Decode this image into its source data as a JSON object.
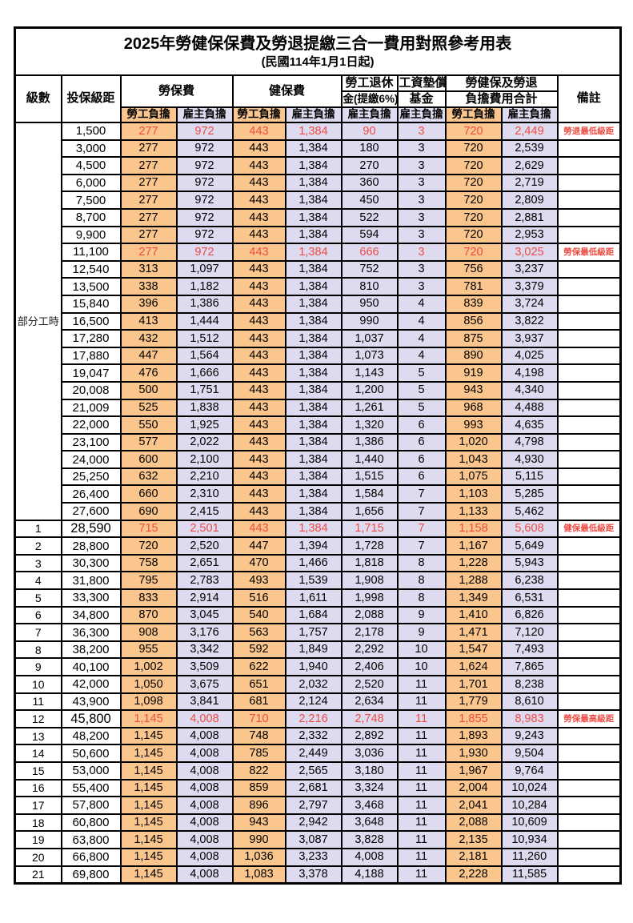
{
  "title": "2025年勞健保保費及勞退提繳三合一費用對照參考用表",
  "subtitle": "(民國114年1月1日起)",
  "header": {
    "level": "級數",
    "bracket": "投保級距",
    "labor_fee": "勞保費",
    "health_fee": "健保費",
    "pension_line1": "勞工退休",
    "pension_line2": "金(提繳6%)",
    "wage_fund_line1": "工資墊償",
    "wage_fund_line2": "基金",
    "total_line1": "勞健保及勞退",
    "total_line2": "負擔費用合計",
    "remark": "備註",
    "worker_burden": "勞工負擔",
    "employer_burden": "雇主負擔"
  },
  "part_time_label": "部分工時",
  "part_time_rowspan": 23,
  "colors": {
    "worker_column_bg": "#FAC68D",
    "employer_column_bg": "#DEDBF0",
    "highlight_text": "#EE4B44",
    "border": "#000000"
  },
  "rows": [
    [
      "",
      "1,500",
      "277",
      "972",
      "443",
      "1,384",
      "90",
      "3",
      "720",
      "2,449",
      "勞退最低級距",
      1,
      0
    ],
    [
      "",
      "3,000",
      "277",
      "972",
      "443",
      "1,384",
      "180",
      "3",
      "720",
      "2,539",
      "",
      0,
      0
    ],
    [
      "",
      "4,500",
      "277",
      "972",
      "443",
      "1,384",
      "270",
      "3",
      "720",
      "2,629",
      "",
      0,
      0
    ],
    [
      "",
      "6,000",
      "277",
      "972",
      "443",
      "1,384",
      "360",
      "3",
      "720",
      "2,719",
      "",
      0,
      0
    ],
    [
      "",
      "7,500",
      "277",
      "972",
      "443",
      "1,384",
      "450",
      "3",
      "720",
      "2,809",
      "",
      0,
      0
    ],
    [
      "",
      "8,700",
      "277",
      "972",
      "443",
      "1,384",
      "522",
      "3",
      "720",
      "2,881",
      "",
      0,
      0
    ],
    [
      "",
      "9,900",
      "277",
      "972",
      "443",
      "1,384",
      "594",
      "3",
      "720",
      "2,953",
      "",
      0,
      0
    ],
    [
      "",
      "11,100",
      "277",
      "972",
      "443",
      "1,384",
      "666",
      "3",
      "720",
      "3,025",
      "勞保最低級距",
      1,
      0
    ],
    [
      "",
      "12,540",
      "313",
      "1,097",
      "443",
      "1,384",
      "752",
      "3",
      "756",
      "3,237",
      "",
      0,
      0
    ],
    [
      "",
      "13,500",
      "338",
      "1,182",
      "443",
      "1,384",
      "810",
      "3",
      "781",
      "3,379",
      "",
      0,
      0
    ],
    [
      "",
      "15,840",
      "396",
      "1,386",
      "443",
      "1,384",
      "950",
      "4",
      "839",
      "3,724",
      "",
      0,
      0
    ],
    [
      "",
      "16,500",
      "413",
      "1,444",
      "443",
      "1,384",
      "990",
      "4",
      "856",
      "3,822",
      "",
      0,
      0
    ],
    [
      "",
      "17,280",
      "432",
      "1,512",
      "443",
      "1,384",
      "1,037",
      "4",
      "875",
      "3,937",
      "",
      0,
      0
    ],
    [
      "",
      "17,880",
      "447",
      "1,564",
      "443",
      "1,384",
      "1,073",
      "4",
      "890",
      "4,025",
      "",
      0,
      0
    ],
    [
      "",
      "19,047",
      "476",
      "1,666",
      "443",
      "1,384",
      "1,143",
      "5",
      "919",
      "4,198",
      "",
      0,
      0
    ],
    [
      "",
      "20,008",
      "500",
      "1,751",
      "443",
      "1,384",
      "1,200",
      "5",
      "943",
      "4,340",
      "",
      0,
      0
    ],
    [
      "",
      "21,009",
      "525",
      "1,838",
      "443",
      "1,384",
      "1,261",
      "5",
      "968",
      "4,488",
      "",
      0,
      0
    ],
    [
      "",
      "22,000",
      "550",
      "1,925",
      "443",
      "1,384",
      "1,320",
      "6",
      "993",
      "4,635",
      "",
      0,
      0
    ],
    [
      "",
      "23,100",
      "577",
      "2,022",
      "443",
      "1,384",
      "1,386",
      "6",
      "1,020",
      "4,798",
      "",
      0,
      0
    ],
    [
      "",
      "24,000",
      "600",
      "2,100",
      "443",
      "1,384",
      "1,440",
      "6",
      "1,043",
      "4,930",
      "",
      0,
      0
    ],
    [
      "",
      "25,250",
      "632",
      "2,210",
      "443",
      "1,384",
      "1,515",
      "6",
      "1,075",
      "5,115",
      "",
      0,
      0
    ],
    [
      "",
      "26,400",
      "660",
      "2,310",
      "443",
      "1,384",
      "1,584",
      "7",
      "1,103",
      "5,285",
      "",
      0,
      0
    ],
    [
      "",
      "27,600",
      "690",
      "2,415",
      "443",
      "1,384",
      "1,656",
      "7",
      "1,133",
      "5,462",
      "",
      0,
      0
    ],
    [
      "1",
      "28,590",
      "715",
      "2,501",
      "443",
      "1,384",
      "1,715",
      "7",
      "1,158",
      "5,608",
      "健保最低級距",
      1,
      1
    ],
    [
      "2",
      "28,800",
      "720",
      "2,520",
      "447",
      "1,394",
      "1,728",
      "7",
      "1,167",
      "5,649",
      "",
      0,
      0
    ],
    [
      "3",
      "30,300",
      "758",
      "2,651",
      "470",
      "1,466",
      "1,818",
      "8",
      "1,228",
      "5,943",
      "",
      0,
      0
    ],
    [
      "4",
      "31,800",
      "795",
      "2,783",
      "493",
      "1,539",
      "1,908",
      "8",
      "1,288",
      "6,238",
      "",
      0,
      0
    ],
    [
      "5",
      "33,300",
      "833",
      "2,914",
      "516",
      "1,611",
      "1,998",
      "8",
      "1,349",
      "6,531",
      "",
      0,
      0
    ],
    [
      "6",
      "34,800",
      "870",
      "3,045",
      "540",
      "1,684",
      "2,088",
      "9",
      "1,410",
      "6,826",
      "",
      0,
      0
    ],
    [
      "7",
      "36,300",
      "908",
      "3,176",
      "563",
      "1,757",
      "2,178",
      "9",
      "1,471",
      "7,120",
      "",
      0,
      0
    ],
    [
      "8",
      "38,200",
      "955",
      "3,342",
      "592",
      "1,849",
      "2,292",
      "10",
      "1,547",
      "7,493",
      "",
      0,
      0
    ],
    [
      "9",
      "40,100",
      "1,002",
      "3,509",
      "622",
      "1,940",
      "2,406",
      "10",
      "1,624",
      "7,865",
      "",
      0,
      0
    ],
    [
      "10",
      "42,000",
      "1,050",
      "3,675",
      "651",
      "2,032",
      "2,520",
      "11",
      "1,701",
      "8,238",
      "",
      0,
      0
    ],
    [
      "11",
      "43,900",
      "1,098",
      "3,841",
      "681",
      "2,124",
      "2,634",
      "11",
      "1,779",
      "8,610",
      "",
      0,
      0
    ],
    [
      "12",
      "45,800",
      "1,145",
      "4,008",
      "710",
      "2,216",
      "2,748",
      "11",
      "1,855",
      "8,983",
      "勞保最高級距",
      1,
      1
    ],
    [
      "13",
      "48,200",
      "1,145",
      "4,008",
      "748",
      "2,332",
      "2,892",
      "11",
      "1,893",
      "9,243",
      "",
      0,
      0
    ],
    [
      "14",
      "50,600",
      "1,145",
      "4,008",
      "785",
      "2,449",
      "3,036",
      "11",
      "1,930",
      "9,504",
      "",
      0,
      0
    ],
    [
      "15",
      "53,000",
      "1,145",
      "4,008",
      "822",
      "2,565",
      "3,180",
      "11",
      "1,967",
      "9,764",
      "",
      0,
      0
    ],
    [
      "16",
      "55,400",
      "1,145",
      "4,008",
      "859",
      "2,681",
      "3,324",
      "11",
      "2,004",
      "10,024",
      "",
      0,
      0
    ],
    [
      "17",
      "57,800",
      "1,145",
      "4,008",
      "896",
      "2,797",
      "3,468",
      "11",
      "2,041",
      "10,284",
      "",
      0,
      0
    ],
    [
      "18",
      "60,800",
      "1,145",
      "4,008",
      "943",
      "2,942",
      "3,648",
      "11",
      "2,088",
      "10,609",
      "",
      0,
      0
    ],
    [
      "19",
      "63,800",
      "1,145",
      "4,008",
      "990",
      "3,087",
      "3,828",
      "11",
      "2,135",
      "10,934",
      "",
      0,
      0
    ],
    [
      "20",
      "66,800",
      "1,145",
      "4,008",
      "1,036",
      "3,233",
      "4,008",
      "11",
      "2,181",
      "11,260",
      "",
      0,
      0
    ],
    [
      "21",
      "69,800",
      "1,145",
      "4,008",
      "1,083",
      "3,378",
      "4,188",
      "11",
      "2,228",
      "11,585",
      "",
      0,
      0
    ]
  ]
}
